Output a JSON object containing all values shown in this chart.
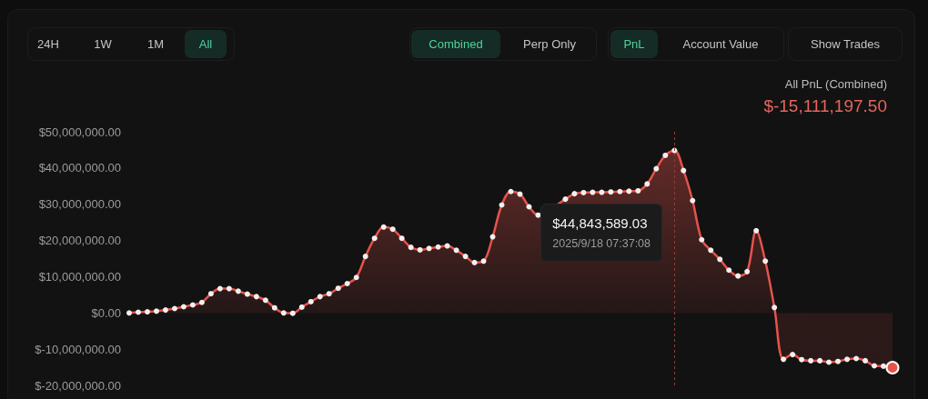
{
  "chart_data": {
    "type": "area",
    "title": "All PnL (Combined)",
    "subtitle": "$-15,111,197.50",
    "categories": [
      null,
      null,
      null,
      null,
      null,
      null,
      null,
      null,
      null,
      null,
      null,
      null,
      null,
      null,
      null,
      null,
      null,
      null,
      null,
      null,
      null,
      null,
      null,
      null,
      null,
      null,
      null,
      null,
      null,
      null,
      null,
      null,
      null,
      null,
      null,
      null,
      null,
      null,
      null,
      null,
      null,
      null,
      null,
      null,
      null,
      null,
      null,
      null,
      null,
      null,
      null,
      null,
      null,
      null,
      null,
      null,
      null,
      null,
      null,
      null,
      null,
      null,
      null,
      null,
      null,
      null,
      null,
      null,
      null,
      null,
      null,
      null,
      null,
      null,
      null,
      null,
      null,
      null,
      null,
      null,
      null,
      null,
      null,
      null,
      null
    ],
    "series": [
      {
        "color": "#e5534b",
        "values": [
          0,
          200000,
          300000,
          500000,
          800000,
          1200000,
          1700000,
          2200000,
          2900000,
          5300000,
          6700000,
          6700000,
          6000000,
          5200000,
          4500000,
          3500000,
          1400000,
          0,
          -100000,
          1600000,
          3100000,
          4500000,
          5300000,
          6800000,
          8100000,
          9800000,
          15600000,
          20600000,
          23700000,
          23100000,
          20600000,
          18100000,
          17400000,
          17800000,
          18200000,
          18500000,
          17300000,
          15600000,
          13900000,
          14300000,
          21000000,
          29800000,
          33500000,
          32800000,
          29300000,
          27000000,
          null,
          null,
          31400000,
          32900000,
          33200000,
          33300000,
          33300000,
          33400000,
          33500000,
          33600000,
          33700000,
          35600000,
          39800000,
          43500000,
          44843589.03,
          39300000,
          31000000,
          20200000,
          17300000,
          14800000,
          11800000,
          10200000,
          11400000,
          22700000,
          14300000,
          1500000,
          -12800000,
          -11500000,
          -12900000,
          -13200000,
          -13200000,
          -13600000,
          -13400000,
          -12800000,
          -12600000,
          -13200000,
          -14600000,
          -14700000,
          -15111197.5
        ]
      }
    ],
    "ylim": [
      -20000000,
      50000000
    ],
    "yticks": [
      {
        "value": -20000000,
        "label": "$-20,000,000.00"
      },
      {
        "value": -10000000,
        "label": "$-10,000,000.00"
      },
      {
        "value": 0,
        "label": "$0.00"
      },
      {
        "value": 10000000,
        "label": "$10,000,000.00"
      },
      {
        "value": 20000000,
        "label": "$20,000,000.00"
      },
      {
        "value": 30000000,
        "label": "$30,000,000.00"
      },
      {
        "value": 40000000,
        "label": "$40,000,000.00"
      },
      {
        "value": 50000000,
        "label": "$50,000,000.00"
      }
    ],
    "tick_labels": "y",
    "marker": "circle",
    "line_style": "solid",
    "annotations": [
      "24H",
      "1W",
      "1M",
      "All",
      "Combined",
      "Perp Only",
      "PnL",
      "Account Value",
      "Show Trades",
      "$44,843,589.03",
      "2025/9/18 07:37:08"
    ]
  }
}
